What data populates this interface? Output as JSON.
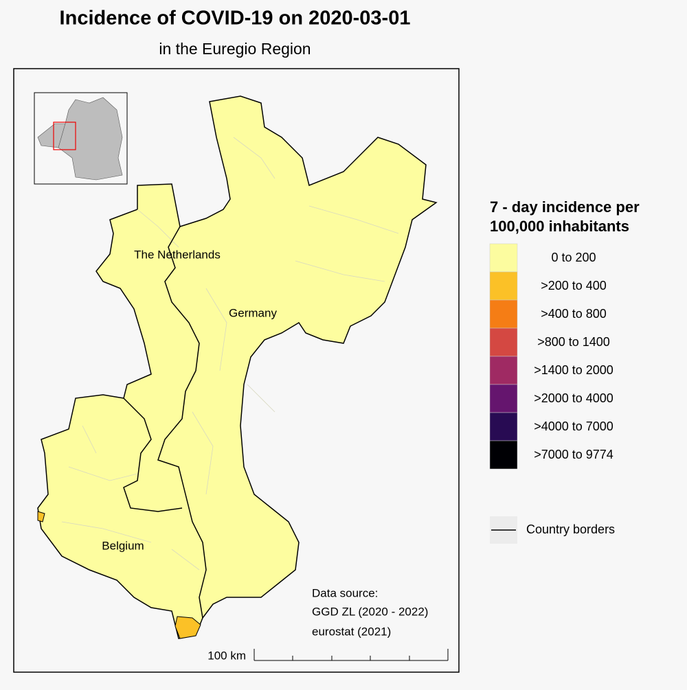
{
  "title": "Incidence of COVID-19 on 2020-03-01",
  "subtitle": "in the Euregio Region",
  "country_labels": [
    "The Netherlands",
    "Germany",
    "Belgium"
  ],
  "legend": {
    "title_lines": [
      "7 - day incidence per",
      "100,000 inhabitants"
    ],
    "items": [
      {
        "label": "0 to 200",
        "color": "#fcfc9f"
      },
      {
        "label": ">200 to 400",
        "color": "#fbc127"
      },
      {
        "label": ">400 to 800",
        "color": "#f57d15"
      },
      {
        "label": ">800 to 1400",
        "color": "#d44842"
      },
      {
        "label": ">1400 to 2000",
        "color": "#9f2a63"
      },
      {
        "label": ">2000 to 4000",
        "color": "#65156e"
      },
      {
        "label": ">4000 to 7000",
        "color": "#280b53"
      },
      {
        "label": ">7000 to 9774",
        "color": "#000004"
      }
    ],
    "border_label": "Country borders"
  },
  "source": [
    "Data source:",
    "GGD ZL (2020 - 2022)",
    "eurostat (2021)"
  ],
  "scale_bar_label": "100 km"
}
